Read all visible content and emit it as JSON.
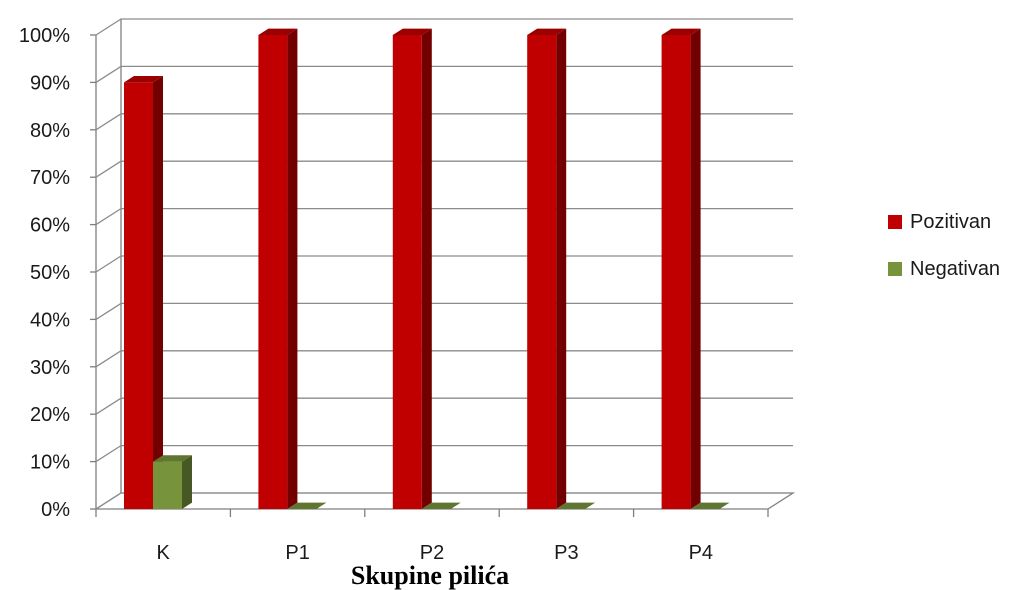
{
  "chart_data": {
    "type": "bar",
    "categories": [
      "K",
      "P1",
      "P2",
      "P3",
      "P4"
    ],
    "series": [
      {
        "name": "Pozitivan",
        "values": [
          90,
          100,
          100,
          100,
          100
        ],
        "color": "#c00000"
      },
      {
        "name": "Negativan",
        "values": [
          10,
          0,
          0,
          0,
          0
        ],
        "color": "#77933c"
      }
    ],
    "y_ticks": [
      "0%",
      "10%",
      "20%",
      "30%",
      "40%",
      "50%",
      "60%",
      "70%",
      "80%",
      "90%",
      "100%"
    ],
    "ylim": [
      0,
      100
    ],
    "xlabel": "Skupine pilića",
    "ylabel": "",
    "grid": true,
    "legend_position": "right",
    "style": "3d-column"
  }
}
